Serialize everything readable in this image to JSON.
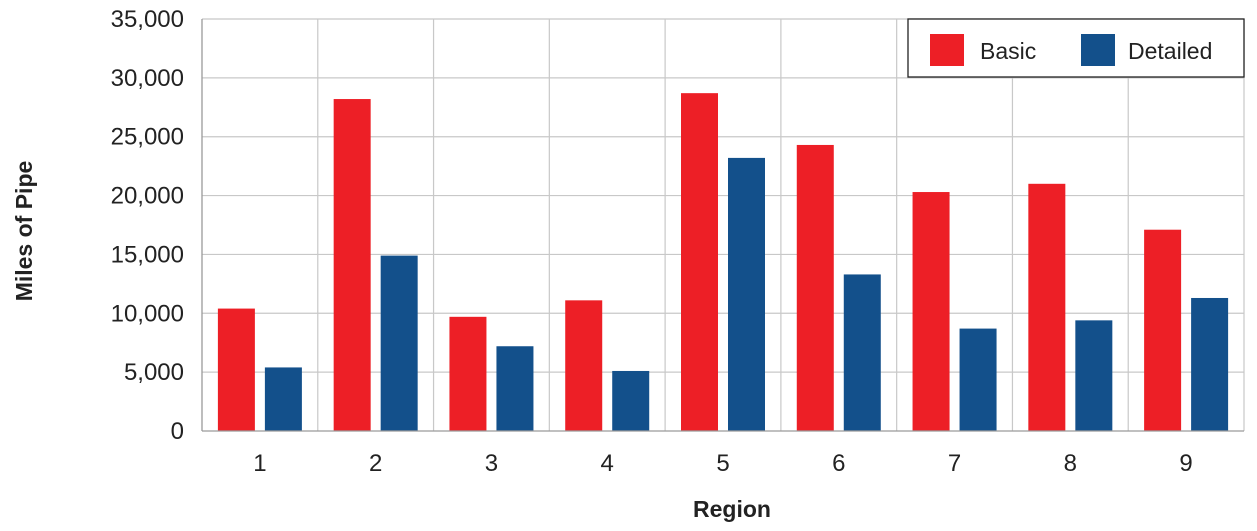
{
  "chart_data": {
    "type": "bar",
    "title": "",
    "xlabel": "Region",
    "ylabel": "Miles of Pipe",
    "categories": [
      "1",
      "2",
      "3",
      "4",
      "5",
      "6",
      "7",
      "8",
      "9"
    ],
    "series": [
      {
        "name": "Basic",
        "color": "#ed1f26",
        "values": [
          10400,
          28200,
          9700,
          11100,
          28700,
          24300,
          20300,
          21000,
          17100
        ]
      },
      {
        "name": "Detailed",
        "color": "#13508b",
        "values": [
          5400,
          14900,
          7200,
          5100,
          23200,
          13300,
          8700,
          9400,
          11300
        ]
      }
    ],
    "ylim": [
      0,
      35000
    ],
    "yticks": [
      "0",
      "5,000",
      "10,000",
      "15,000",
      "20,000",
      "25,000",
      "30,000",
      "35,000"
    ],
    "ytick_values": [
      0,
      5000,
      10000,
      15000,
      20000,
      25000,
      30000,
      35000
    ],
    "grid": true,
    "legend_position": "top-right",
    "gridline_color": "#c8c8c8",
    "axis_color": "#9a9a9a"
  }
}
